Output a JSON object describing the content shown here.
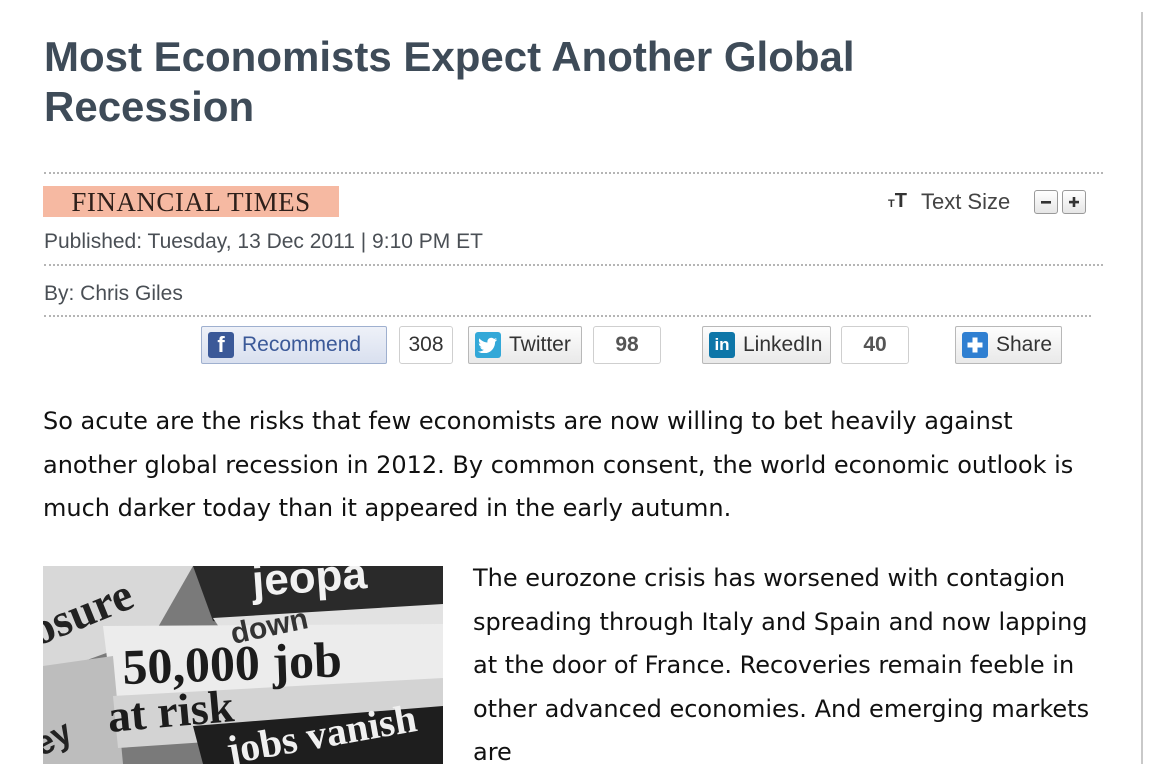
{
  "article": {
    "title": "Most Economists Expect Another Global Recession",
    "source": "FINANCIAL TIMES",
    "published": "Published: Tuesday, 13 Dec 2011 | 9:10 PM ET",
    "byline": "By: Chris Giles"
  },
  "text_size": {
    "icon_small": "T",
    "icon_big": "T",
    "label": "Text Size",
    "decrease": "minus-icon",
    "increase": "plus-icon"
  },
  "social": {
    "facebook": {
      "label": "Recommend",
      "count": "308",
      "icon": "f"
    },
    "twitter": {
      "label": "Twitter",
      "count": "98"
    },
    "linkedin": {
      "label": "LinkedIn",
      "count": "40",
      "icon": "in"
    },
    "share": {
      "label": "Share"
    }
  },
  "body": {
    "lead": "So acute are the risks that few economists are now willing to bet heavily against another global recession in 2012. By common consent, the world economic outlook is much darker today than it appeared in the early autumn.",
    "para2": "The eurozone crisis has worsened with contagion spreading through Italy and Spain and now lapping at the door of France. Recoveries remain feeble in other advanced economies. And emerging markets are"
  },
  "photo": {
    "text_1": "osure",
    "text_2": "jeopa",
    "text_3": "down",
    "text_4": "50,000 job",
    "text_5": "at risk",
    "text_6": "ey",
    "text_7": "jobs vanish"
  },
  "colors": {
    "title": "#3e4b58",
    "source_bg": "#f6b9a2",
    "facebook": "#3b5998",
    "twitter": "#33a8d8",
    "linkedin": "#0e76a8",
    "share": "#2f7fd1"
  }
}
